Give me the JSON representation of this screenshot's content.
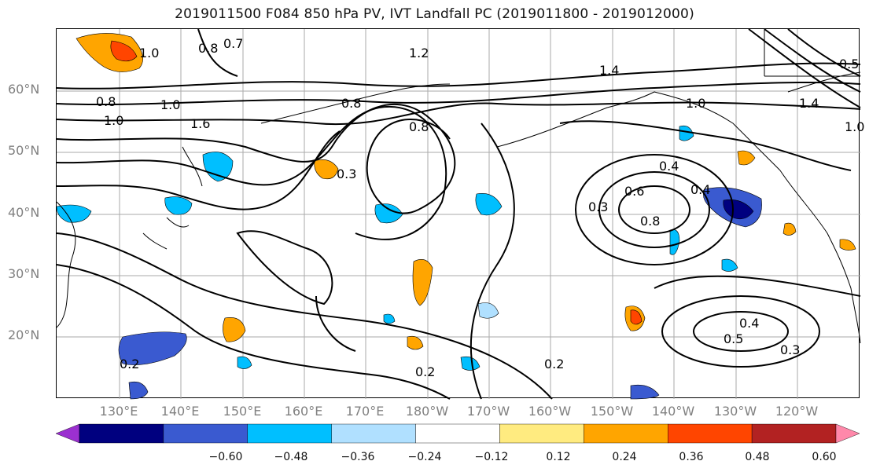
{
  "title": "2019011500 F084 850 hPa PV, IVT Landfall PC (2019011800 - 2019012000)",
  "lat_labels": [
    "60°N",
    "50°N",
    "40°N",
    "30°N",
    "20°N"
  ],
  "lon_labels": [
    "130°E",
    "140°E",
    "150°E",
    "160°E",
    "170°E",
    "180°W",
    "170°W",
    "160°W",
    "150°W",
    "140°W",
    "130°W",
    "120°W"
  ],
  "contour_labels": [
    "1.0",
    "0.7",
    "0.8",
    "1.2",
    "1.0",
    "1.0",
    "1.6",
    "0.8",
    "1.4",
    "1.4",
    "0.5",
    "1.0",
    "0.8",
    "0.3",
    "0.4",
    "0.3",
    "0.4",
    "0.6",
    "0.8",
    "0.4",
    "0.5",
    "0.3",
    "0.2",
    "0.2",
    "0.2",
    "1.0",
    "0.8"
  ],
  "colorbar": {
    "ticks": [
      "−0.60",
      "−0.48",
      "−0.36",
      "−0.24",
      "−0.12",
      "0.12",
      "0.24",
      "0.36",
      "0.48",
      "0.60"
    ],
    "colors": [
      "#9b30d0",
      "#00007f",
      "#3a5ad0",
      "#00bfff",
      "#b0e0ff",
      "#ffffff",
      "#ffeb80",
      "#ffa500",
      "#ff4500",
      "#b22222",
      "#ff88aa"
    ]
  }
}
